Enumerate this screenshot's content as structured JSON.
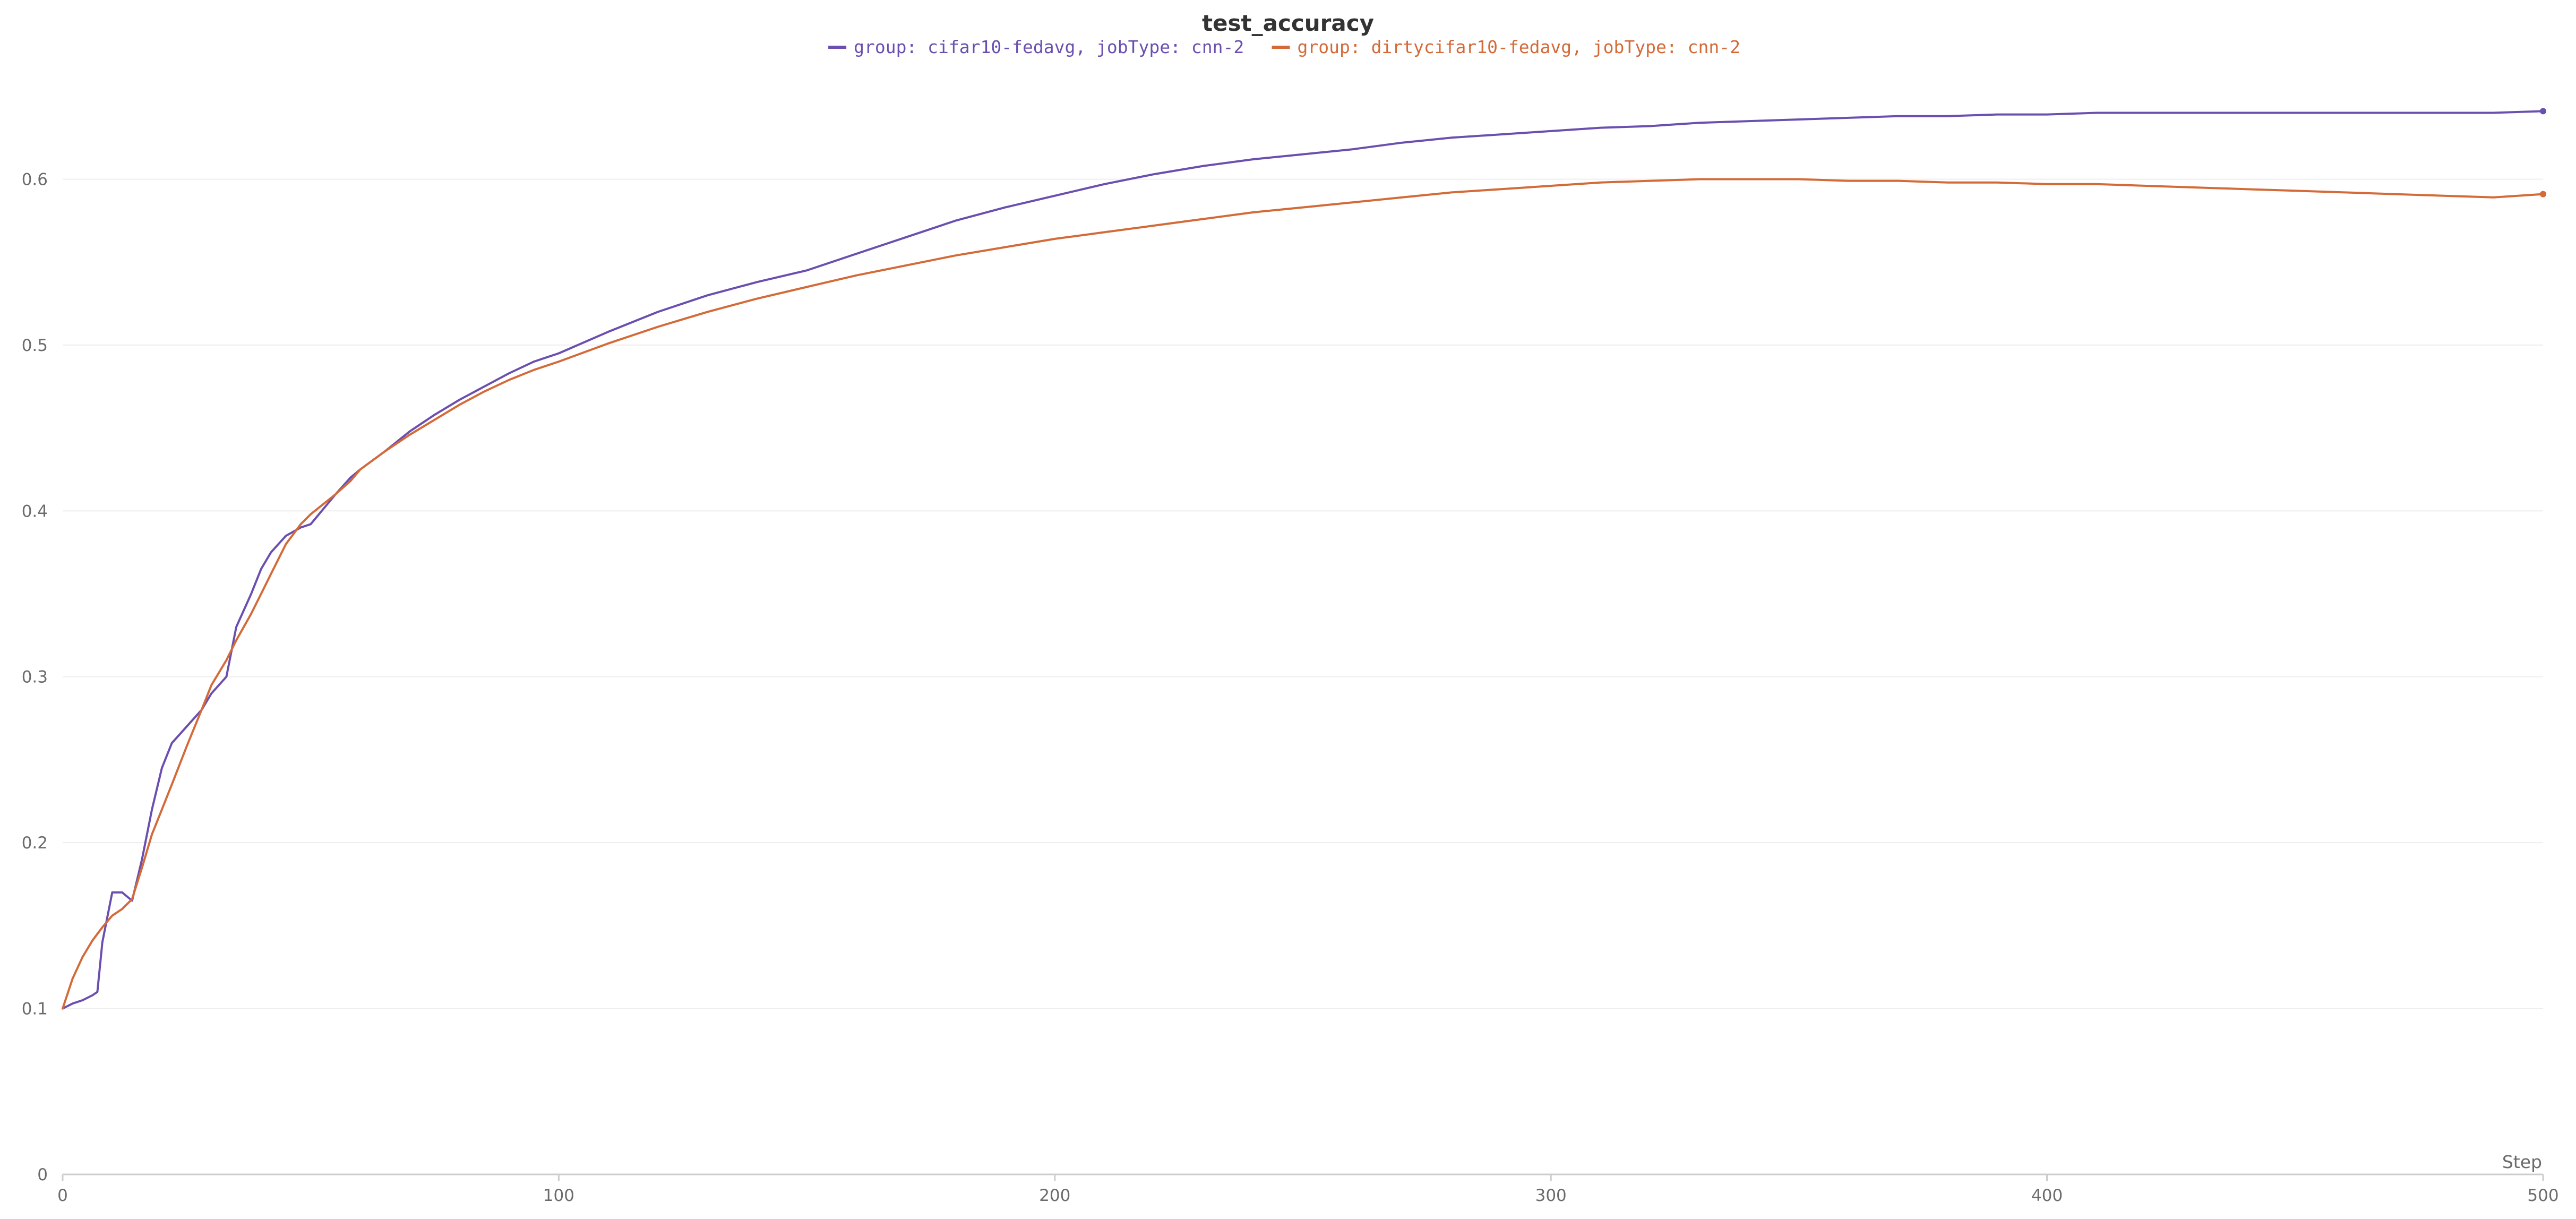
{
  "chart_data": {
    "type": "line",
    "title": "test_accuracy",
    "xlabel": "Step",
    "ylabel": "",
    "xlim": [
      0,
      500
    ],
    "ylim": [
      0,
      0.66
    ],
    "x_ticks": [
      0,
      100,
      200,
      300,
      400,
      500
    ],
    "y_ticks": [
      0,
      0.1,
      0.2,
      0.3,
      0.4,
      0.5,
      0.6
    ],
    "x_tick_labels": [
      "0",
      "100",
      "200",
      "300",
      "400",
      "500"
    ],
    "y_tick_labels": [
      "0",
      "0.1",
      "0.2",
      "0.3",
      "0.4",
      "0.5",
      "0.6"
    ],
    "grid": "horizontal",
    "legend_position": "top-center",
    "series": [
      {
        "name": "group: cifar10-fedavg, jobType: cnn-2",
        "color": "#6a4fb0",
        "x": [
          0,
          2,
          4,
          6,
          7,
          8,
          10,
          12,
          14,
          16,
          18,
          20,
          22,
          25,
          28,
          30,
          33,
          35,
          38,
          40,
          42,
          45,
          48,
          50,
          55,
          58,
          60,
          65,
          70,
          75,
          80,
          85,
          90,
          95,
          100,
          110,
          120,
          130,
          140,
          150,
          160,
          170,
          180,
          190,
          200,
          210,
          220,
          230,
          240,
          250,
          260,
          270,
          280,
          290,
          300,
          310,
          320,
          330,
          340,
          350,
          360,
          370,
          380,
          390,
          400,
          410,
          420,
          430,
          440,
          450,
          460,
          470,
          480,
          490,
          500
        ],
        "values": [
          0.1,
          0.103,
          0.105,
          0.108,
          0.11,
          0.14,
          0.17,
          0.17,
          0.165,
          0.19,
          0.22,
          0.245,
          0.26,
          0.27,
          0.28,
          0.29,
          0.3,
          0.33,
          0.35,
          0.365,
          0.375,
          0.385,
          0.39,
          0.392,
          0.41,
          0.42,
          0.425,
          0.436,
          0.448,
          0.458,
          0.467,
          0.475,
          0.483,
          0.49,
          0.495,
          0.508,
          0.52,
          0.53,
          0.538,
          0.545,
          0.555,
          0.565,
          0.575,
          0.583,
          0.59,
          0.597,
          0.603,
          0.608,
          0.612,
          0.615,
          0.618,
          0.622,
          0.625,
          0.627,
          0.629,
          0.631,
          0.632,
          0.634,
          0.635,
          0.636,
          0.637,
          0.638,
          0.638,
          0.639,
          0.639,
          0.64,
          0.64,
          0.64,
          0.64,
          0.64,
          0.64,
          0.64,
          0.64,
          0.64,
          0.641
        ]
      },
      {
        "name": "group: dirtycifar10-fedavg, jobType: cnn-2",
        "color": "#d46a38",
        "x": [
          0,
          2,
          4,
          6,
          8,
          10,
          12,
          14,
          16,
          18,
          20,
          22,
          25,
          28,
          30,
          33,
          35,
          38,
          40,
          42,
          45,
          48,
          50,
          55,
          58,
          60,
          65,
          70,
          75,
          80,
          85,
          90,
          95,
          100,
          110,
          120,
          130,
          140,
          150,
          160,
          170,
          180,
          190,
          200,
          210,
          220,
          230,
          240,
          250,
          260,
          270,
          280,
          290,
          300,
          310,
          320,
          330,
          340,
          350,
          360,
          370,
          380,
          390,
          400,
          410,
          420,
          430,
          440,
          450,
          460,
          470,
          480,
          490,
          500
        ],
        "values": [
          0.1,
          0.118,
          0.131,
          0.141,
          0.149,
          0.156,
          0.16,
          0.166,
          0.185,
          0.205,
          0.22,
          0.235,
          0.258,
          0.28,
          0.295,
          0.31,
          0.322,
          0.338,
          0.35,
          0.362,
          0.38,
          0.392,
          0.398,
          0.41,
          0.418,
          0.425,
          0.436,
          0.446,
          0.455,
          0.464,
          0.472,
          0.479,
          0.485,
          0.49,
          0.501,
          0.511,
          0.52,
          0.528,
          0.535,
          0.542,
          0.548,
          0.554,
          0.559,
          0.564,
          0.568,
          0.572,
          0.576,
          0.58,
          0.583,
          0.586,
          0.589,
          0.592,
          0.594,
          0.596,
          0.598,
          0.599,
          0.6,
          0.6,
          0.6,
          0.599,
          0.599,
          0.598,
          0.598,
          0.597,
          0.597,
          0.596,
          0.595,
          0.594,
          0.593,
          0.592,
          0.591,
          0.59,
          0.589,
          0.591
        ]
      }
    ]
  }
}
